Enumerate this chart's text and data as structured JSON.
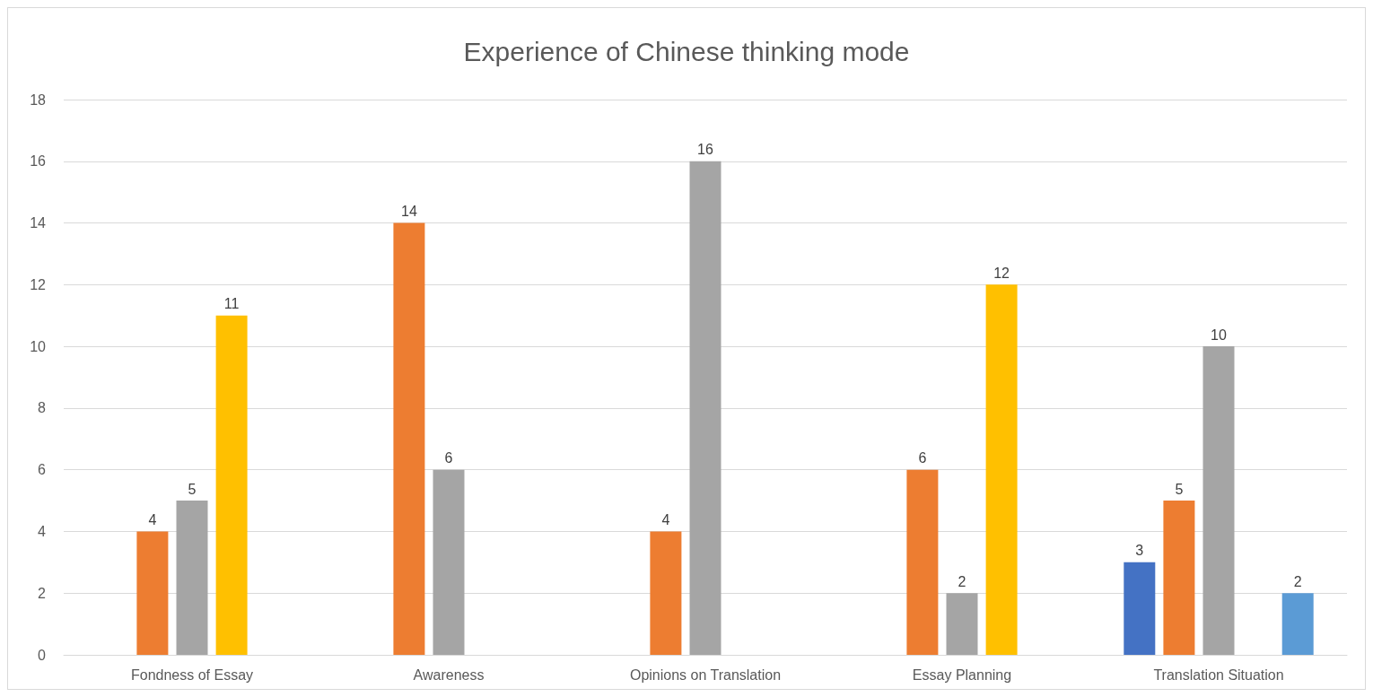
{
  "chart_data": {
    "type": "bar",
    "title": "Experience of Chinese thinking mode",
    "categories": [
      "Fondness of Essay",
      "Awareness",
      "Opinions on Translation",
      "Essay Planning",
      "Translation Situation"
    ],
    "series": [
      {
        "color": "#4472c4",
        "values": [
          null,
          null,
          null,
          null,
          3
        ]
      },
      {
        "color": "#ed7d31",
        "values": [
          4,
          14,
          4,
          6,
          5
        ]
      },
      {
        "color": "#a5a5a5",
        "values": [
          5,
          6,
          16,
          2,
          10
        ]
      },
      {
        "color": "#ffc000",
        "values": [
          11,
          null,
          null,
          12,
          null
        ]
      },
      {
        "color": "#5b9bd5",
        "values": [
          null,
          null,
          null,
          null,
          2
        ]
      }
    ],
    "ylim": [
      0,
      18
    ],
    "yticks": [
      0,
      2,
      4,
      6,
      8,
      10,
      12,
      14,
      16,
      18
    ],
    "grid": "y",
    "data_labels": true
  }
}
